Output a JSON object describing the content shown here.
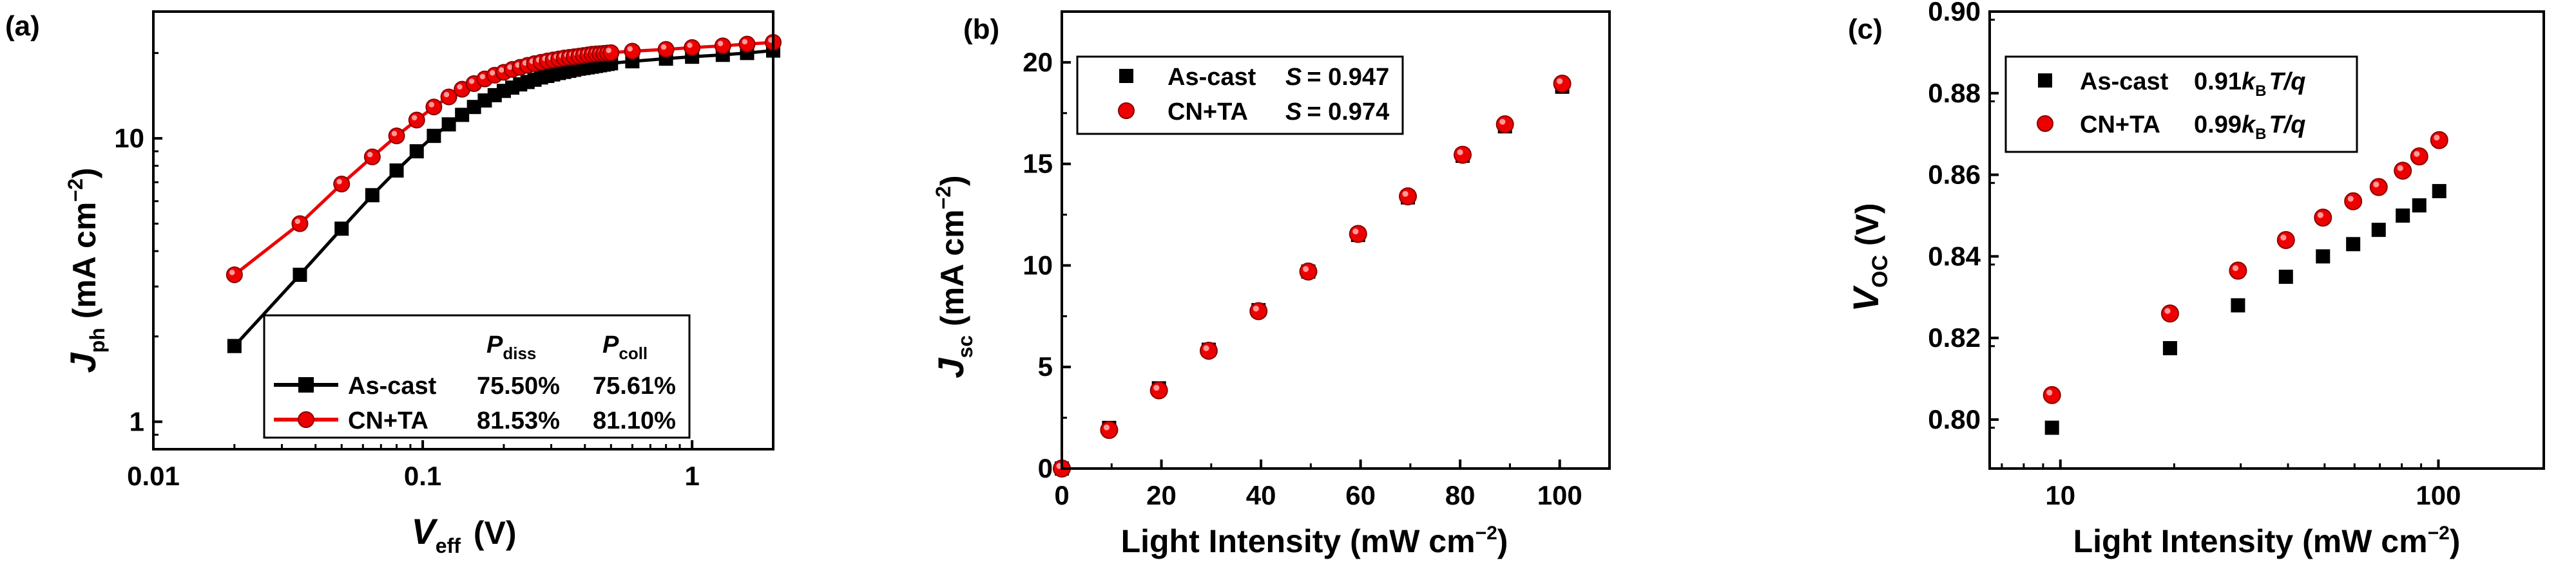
{
  "colors": {
    "black_series": "#000000",
    "red_series": "#ee0000",
    "axis": "#000000"
  },
  "chart_data": [
    {
      "panel_label": "(a)",
      "type": "line",
      "xscale": "log",
      "yscale": "log",
      "xlim": [
        0.01,
        2.0
      ],
      "ylim": [
        0.8,
        28
      ],
      "xticks": [
        0.01,
        0.1,
        1
      ],
      "xtick_labels": [
        "0.01",
        "0.1",
        "1"
      ],
      "yticks": [
        1,
        10
      ],
      "ytick_labels": [
        "1",
        "10"
      ],
      "xlabel": {
        "main": "V",
        "sub": "eff",
        "unit": "(V)"
      },
      "ylabel": {
        "main": "J",
        "sub": "ph",
        "unit": "(mA cm",
        "sup": "−2",
        "close": ")"
      },
      "legend": {
        "position": "bottom-right",
        "header": [
          {
            "main": "P",
            "sub": "diss"
          },
          {
            "main": "P",
            "sub": "coll"
          }
        ],
        "rows": [
          {
            "label": "As-cast",
            "pdiss": "75.50%",
            "pcoll": "75.61%"
          },
          {
            "label": "CN+TA",
            "pdiss": "81.53%",
            "pcoll": "81.10%"
          }
        ]
      },
      "series": [
        {
          "name": "As-cast",
          "marker": "square",
          "x": [
            0.02,
            0.035,
            0.05,
            0.065,
            0.08,
            0.095,
            0.11,
            0.125,
            0.14,
            0.155,
            0.17,
            0.185,
            0.2,
            0.215,
            0.23,
            0.245,
            0.26,
            0.275,
            0.29,
            0.305,
            0.32,
            0.335,
            0.35,
            0.365,
            0.38,
            0.395,
            0.41,
            0.425,
            0.44,
            0.455,
            0.47,
            0.485,
            0.5,
            0.6,
            0.8,
            1.0,
            1.3,
            1.6,
            2.0
          ],
          "y": [
            1.85,
            3.3,
            4.8,
            6.3,
            7.7,
            9.0,
            10.2,
            11.2,
            12.1,
            12.9,
            13.6,
            14.2,
            14.7,
            15.1,
            15.5,
            15.8,
            16.1,
            16.4,
            16.6,
            16.8,
            17.0,
            17.15,
            17.3,
            17.45,
            17.6,
            17.7,
            17.8,
            17.9,
            18.0,
            18.1,
            18.2,
            18.3,
            18.4,
            18.7,
            19.1,
            19.4,
            19.7,
            20.0,
            20.4
          ]
        },
        {
          "name": "CN+TA",
          "marker": "circle",
          "x": [
            0.02,
            0.035,
            0.05,
            0.065,
            0.08,
            0.095,
            0.11,
            0.125,
            0.14,
            0.155,
            0.17,
            0.185,
            0.2,
            0.215,
            0.23,
            0.245,
            0.26,
            0.275,
            0.29,
            0.305,
            0.32,
            0.335,
            0.35,
            0.365,
            0.38,
            0.395,
            0.41,
            0.425,
            0.44,
            0.455,
            0.47,
            0.485,
            0.5,
            0.6,
            0.8,
            1.0,
            1.3,
            1.6,
            2.0
          ],
          "y": [
            3.3,
            5.0,
            6.9,
            8.6,
            10.2,
            11.6,
            12.9,
            14.0,
            14.9,
            15.6,
            16.2,
            16.7,
            17.1,
            17.5,
            17.8,
            18.1,
            18.35,
            18.55,
            18.75,
            18.9,
            19.05,
            19.2,
            19.3,
            19.4,
            19.5,
            19.6,
            19.7,
            19.8,
            19.85,
            19.9,
            19.95,
            20.0,
            20.05,
            20.3,
            20.6,
            20.9,
            21.2,
            21.5,
            21.8
          ]
        }
      ]
    },
    {
      "panel_label": "(b)",
      "type": "scatter",
      "xlim": [
        0,
        110
      ],
      "ylim": [
        0,
        22.5
      ],
      "xticks": [
        0,
        20,
        40,
        60,
        80,
        100
      ],
      "xtick_labels": [
        "0",
        "20",
        "40",
        "60",
        "80",
        "100"
      ],
      "yticks": [
        0,
        5,
        10,
        15,
        20
      ],
      "ytick_labels": [
        "0",
        "5",
        "10",
        "15",
        "20"
      ],
      "xlabel": {
        "text": "Light Intensity (mW cm",
        "sup": "−2",
        "close": ")"
      },
      "ylabel": {
        "main": "J",
        "sub": "sc",
        "unit": "(mA cm",
        "sup": "−2",
        "close": ")"
      },
      "legend": {
        "position": "top-left",
        "rows": [
          {
            "label": "As-cast",
            "stat_name": "S",
            "stat_value": "= 0.947"
          },
          {
            "label": "CN+TA",
            "stat_name": "S",
            "stat_value": "= 0.974"
          }
        ]
      },
      "series": [
        {
          "name": "As-cast",
          "marker": "square",
          "x": [
            0,
            9.5,
            19.5,
            29.5,
            39.5,
            49.5,
            59.5,
            69.5,
            80.5,
            89,
            100.5
          ],
          "y": [
            0,
            2.0,
            3.95,
            5.85,
            7.8,
            9.7,
            11.5,
            13.35,
            15.4,
            16.85,
            18.8
          ]
        },
        {
          "name": "CN+TA",
          "marker": "circle",
          "x": [
            0,
            9.5,
            19.5,
            29.5,
            39.5,
            49.5,
            59.5,
            69.5,
            80.5,
            89,
            100.5
          ],
          "y": [
            0,
            1.9,
            3.85,
            5.8,
            7.75,
            9.7,
            11.55,
            13.4,
            15.45,
            16.95,
            18.95
          ]
        }
      ]
    },
    {
      "panel_label": "(c)",
      "type": "scatter",
      "xscale": "log",
      "xlim": [
        6.5,
        190
      ],
      "ylim": [
        0.788,
        0.9
      ],
      "xticks": [
        10,
        100
      ],
      "xtick_labels": [
        "10",
        "100"
      ],
      "yticks": [
        0.8,
        0.82,
        0.84,
        0.86,
        0.88,
        0.9
      ],
      "ytick_labels": [
        "0.80",
        "0.82",
        "0.84",
        "0.86",
        "0.88",
        "0.90"
      ],
      "xlabel": {
        "text": "Light Intensity (mW cm",
        "sup": "−2",
        "close": ")"
      },
      "ylabel": {
        "main": "V",
        "sub": "OC",
        "unit": "(V)"
      },
      "legend": {
        "position": "top-left",
        "rows": [
          {
            "label": "As-cast",
            "slope": "0.91",
            "k": "k",
            "ksub": "B",
            "tail": "T/q"
          },
          {
            "label": "CN+TA",
            "slope": "0.99",
            "k": "k",
            "ksub": "B",
            "tail": "T/q"
          }
        ]
      },
      "series": [
        {
          "name": "As-cast",
          "marker": "square",
          "x": [
            9.5,
            19.5,
            29.5,
            39.5,
            49.5,
            59.5,
            69.5,
            80.5,
            89,
            100.5
          ],
          "y": [
            0.798,
            0.8175,
            0.828,
            0.835,
            0.84,
            0.843,
            0.8465,
            0.85,
            0.8525,
            0.856
          ]
        },
        {
          "name": "CN+TA",
          "marker": "circle",
          "x": [
            9.5,
            19.5,
            29.5,
            39.5,
            49.5,
            59.5,
            69.5,
            80.5,
            89,
            100.5
          ],
          "y": [
            0.806,
            0.826,
            0.8365,
            0.844,
            0.8495,
            0.8535,
            0.857,
            0.861,
            0.8645,
            0.8685
          ]
        }
      ]
    }
  ]
}
